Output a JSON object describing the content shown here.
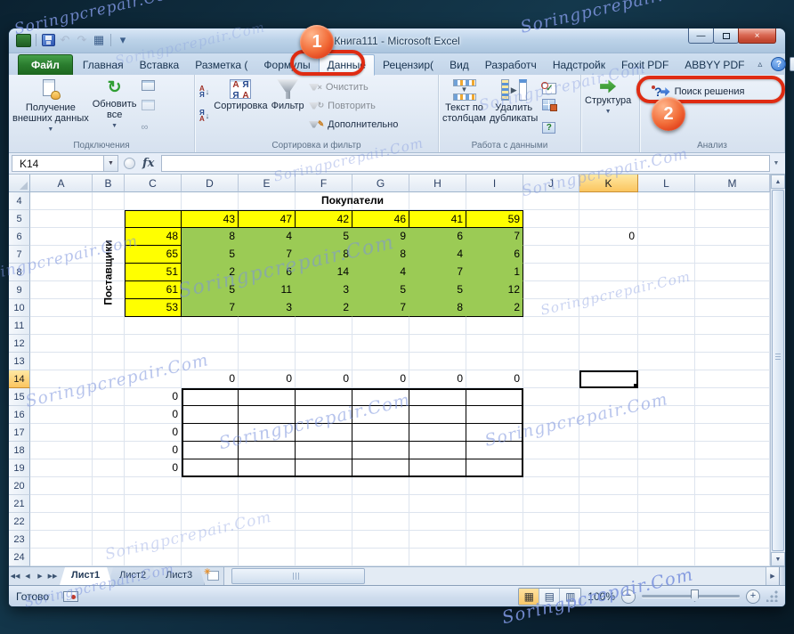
{
  "watermark_text": "Soringpcrepair.Com",
  "colors": {
    "yellow": "#FFFF00",
    "green": "#9BCB55",
    "highlight_red": "#DF2B12",
    "selected_header_orange": "#FBC55F",
    "file_tab_green": "#2A7C2E",
    "balloon_orange": "#F26D39"
  },
  "window": {
    "title": "Книга111 - Microsoft Excel"
  },
  "qat": {
    "items": [
      {
        "name": "excel-logo",
        "glyph": ""
      },
      {
        "name": "save",
        "glyph": ""
      },
      {
        "name": "undo",
        "glyph": "↶"
      },
      {
        "name": "redo",
        "glyph": "↷"
      },
      {
        "name": "quick-table",
        "glyph": "▦"
      },
      {
        "name": "qat-dropdown",
        "glyph": "▾"
      }
    ]
  },
  "tabs": {
    "file_label": "Файл",
    "active": "Данные",
    "items": [
      "Главная",
      "Вставка",
      "Разметка (",
      "Формулы",
      "Данные",
      "Рецензир(",
      "Вид",
      "Разработч",
      "Надстройк",
      "Foxit PDF",
      "ABBYY PDF"
    ],
    "controls": [
      {
        "name": "collapse-ribbon",
        "glyph": "▵"
      },
      {
        "name": "help",
        "glyph": "?"
      },
      {
        "name": "window-minimize",
        "glyph": "–"
      },
      {
        "name": "window-restore",
        "glyph": "◻"
      },
      {
        "name": "window-close",
        "glyph": "×"
      }
    ]
  },
  "ribbon": {
    "groups": [
      {
        "label": "Подключения",
        "buttons": [
          {
            "type": "large",
            "lines": [
              "Получение",
              "внешних данных"
            ],
            "icon": "external-data",
            "arrow": true
          },
          {
            "type": "large",
            "lines": [
              "Обновить",
              "все"
            ],
            "icon": "refresh",
            "arrow": true
          },
          {
            "type": "icons",
            "icons": [
              "connection-properties",
              "edit-links",
              "hyperlink"
            ]
          }
        ]
      },
      {
        "label": "Сортировка и фильтр",
        "buttons": [
          {
            "type": "icons",
            "icons": [
              "sort-az",
              "sort-za"
            ]
          },
          {
            "type": "large",
            "lines": [
              "Сортировка"
            ],
            "icon": "sort-dialog"
          },
          {
            "type": "large",
            "lines": [
              "Фильтр"
            ],
            "icon": "funnel"
          },
          {
            "type": "smalls",
            "items": [
              {
                "label": "Очистить",
                "icon": "clear-filter",
                "disabled": true
              },
              {
                "label": "Повторить",
                "icon": "reapply-filter",
                "disabled": true
              },
              {
                "label": "Дополнительно",
                "icon": "advanced-filter",
                "disabled": false
              }
            ]
          }
        ]
      },
      {
        "label": "Работа с данными",
        "buttons": [
          {
            "type": "large",
            "lines": [
              "Текст по",
              "столбцам"
            ],
            "icon": "text-to-columns"
          },
          {
            "type": "large",
            "lines": [
              "Удалить",
              "дубликаты"
            ],
            "icon": "remove-duplicates"
          },
          {
            "type": "icons",
            "icons": [
              "data-validation",
              "consolidate",
              "what-if-analysis"
            ]
          }
        ]
      },
      {
        "label": "",
        "buttons": [
          {
            "type": "large",
            "lines": [
              "Структура"
            ],
            "icon": "outline",
            "arrow": true
          }
        ]
      },
      {
        "label": "Анализ",
        "buttons": [
          {
            "type": "solver",
            "label": "Поиск решения",
            "icon": "solver"
          }
        ]
      }
    ]
  },
  "formula_bar": {
    "name_box": "K14",
    "fx_label": "fx",
    "formula": ""
  },
  "grid": {
    "columns": [
      "A",
      "B",
      "C",
      "D",
      "E",
      "F",
      "G",
      "H",
      "I",
      "J",
      "K",
      "L",
      "M"
    ],
    "row_start": 4,
    "row_end": 24,
    "selected": {
      "col": "K",
      "row": 14
    },
    "title": {
      "text": "Покупатели",
      "row": 4
    },
    "side_label": {
      "text": "Поставщики",
      "col": "B"
    },
    "top_header": {
      "row": 5,
      "cols": [
        "C",
        "D",
        "E",
        "F",
        "G",
        "H",
        "I"
      ],
      "values": [
        "",
        "43",
        "47",
        "42",
        "46",
        "41",
        "59"
      ]
    },
    "left_header": {
      "col": "C",
      "rows": [
        6,
        7,
        8,
        9,
        10
      ],
      "values": [
        "48",
        "65",
        "51",
        "61",
        "53"
      ]
    },
    "matrix": {
      "cols": [
        "D",
        "E",
        "F",
        "G",
        "H",
        "I"
      ],
      "rows": [
        6,
        7,
        8,
        9,
        10
      ],
      "values": [
        [
          "8",
          "4",
          "5",
          "9",
          "6",
          "7"
        ],
        [
          "5",
          "7",
          "8",
          "8",
          "4",
          "6"
        ],
        [
          "2",
          "6",
          "14",
          "4",
          "7",
          "1"
        ],
        [
          "5",
          "11",
          "3",
          "5",
          "5",
          "12"
        ],
        [
          "7",
          "3",
          "2",
          "7",
          "8",
          "2"
        ]
      ]
    },
    "extra_cells": [
      {
        "cell": "K6",
        "value": "0"
      }
    ],
    "zero_row": {
      "row": 14,
      "cols": [
        "D",
        "E",
        "F",
        "G",
        "H",
        "I"
      ],
      "values": [
        "0",
        "0",
        "0",
        "0",
        "0",
        "0"
      ]
    },
    "zero_col": {
      "col": "C",
      "rows": [
        15,
        16,
        17,
        18,
        19
      ],
      "values": [
        "0",
        "0",
        "0",
        "0",
        "0"
      ]
    },
    "empty_bordered": {
      "cols": [
        "D",
        "E",
        "F",
        "G",
        "H",
        "I"
      ],
      "rows": [
        15,
        16,
        17,
        18,
        19
      ]
    }
  },
  "sheet_tabs": {
    "items": [
      "Лист1",
      "Лист2",
      "Лист3"
    ],
    "active": "Лист1"
  },
  "status": {
    "mode": "Готово",
    "zoom_level": "100%"
  },
  "annotations": {
    "badge1": "1",
    "badge2": "2"
  }
}
